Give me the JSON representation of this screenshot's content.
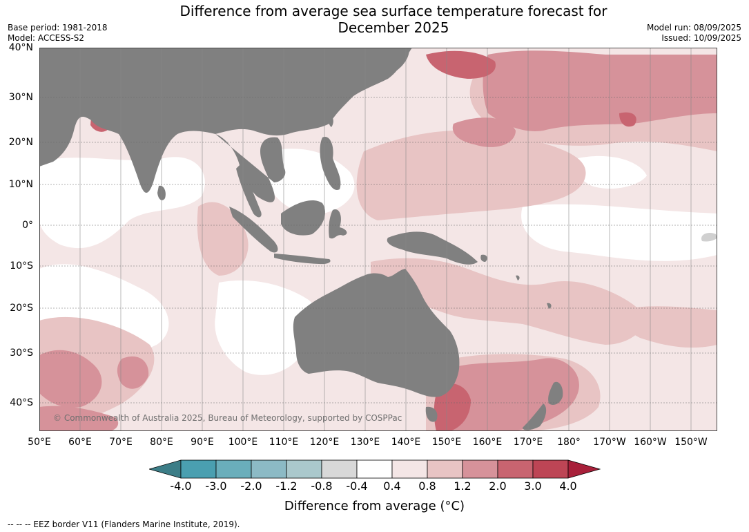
{
  "title": "Difference from average sea surface temperature forecast for December 2025",
  "title_line1": "Difference from average sea surface temperature forecast for",
  "title_line2": "December 2025",
  "meta": {
    "base_period": "Base period: 1981-2018",
    "model": "Model: ACCESS-S2",
    "model_run": "Model run: 08/09/2025",
    "issued": "Issued: 10/09/2025"
  },
  "map": {
    "lat_labels": [
      "40°N",
      "30°N",
      "20°N",
      "10°N",
      "0°",
      "10°S",
      "20°S",
      "30°S",
      "40°S"
    ],
    "lon_labels": [
      "50°E",
      "60°E",
      "70°E",
      "80°E",
      "90°E",
      "100°E",
      "110°E",
      "120°E",
      "130°E",
      "140°E",
      "150°E",
      "160°E",
      "170°E",
      "180°",
      "170°W",
      "160°W",
      "150°W"
    ],
    "land_color": "#808080",
    "copyright": "© Commonwealth of Australia 2025, Bureau of Meteorology, supported by COSPPac"
  },
  "colorbar": {
    "ticks": [
      "-4.0",
      "-3.0",
      "-2.0",
      "-1.2",
      "-0.8",
      "-0.4",
      "0.4",
      "0.8",
      "1.2",
      "2.0",
      "3.0",
      "4.0"
    ],
    "colors": [
      "#3c7d87",
      "#4a9fb0",
      "#6aaebb",
      "#8cbac5",
      "#aac8cc",
      "#d8d8d8",
      "#ffffff",
      "#f4e6e6",
      "#e8c4c4",
      "#d6929a",
      "#c86470",
      "#bd4555",
      "#a8203a"
    ],
    "label": "Difference from average (°C)"
  },
  "footer": "-- -- -- EEZ border V11 (Flanders Marine Institute, 2019)."
}
